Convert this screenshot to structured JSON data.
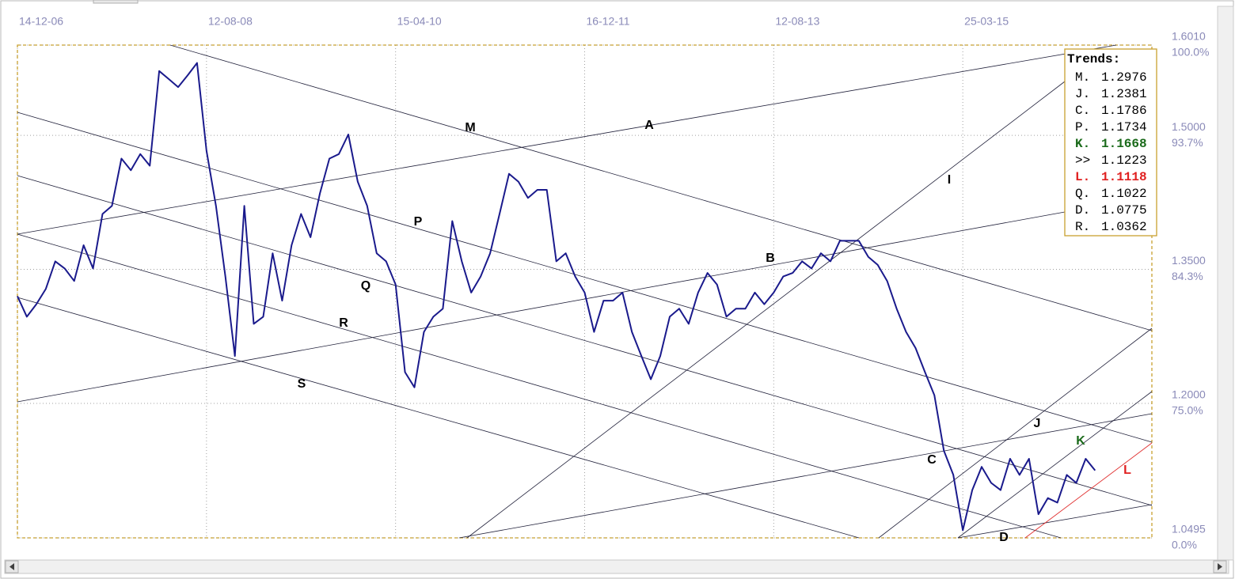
{
  "chart_data": {
    "type": "line",
    "xlim": [
      0,
      120
    ],
    "xticks": [
      {
        "value": 0,
        "label": "14-12-06"
      },
      {
        "value": 20,
        "label": "12-08-08"
      },
      {
        "value": 40,
        "label": "15-04-10"
      },
      {
        "value": 60,
        "label": "16-12-11"
      },
      {
        "value": 80,
        "label": "12-08-13"
      },
      {
        "value": 100,
        "label": "25-03-15"
      }
    ],
    "ylim": [
      1.0495,
      1.601
    ],
    "yticks": [
      {
        "value": 1.601,
        "label": "1.6010"
      },
      {
        "value": 1.5,
        "label": "1.5000"
      },
      {
        "value": 1.35,
        "label": "1.3500"
      },
      {
        "value": 1.2,
        "label": "1.2000"
      },
      {
        "value": 1.0495,
        "label": "1.0495"
      }
    ],
    "ytick_percent_labels": [
      "100.0%",
      "93.7%",
      "84.3%",
      "75.0%",
      "0.0%"
    ],
    "grid": true,
    "series": [
      {
        "color": "#1a1a8c",
        "values": [
          1.32,
          1.297,
          1.311,
          1.328,
          1.359,
          1.351,
          1.337,
          1.377,
          1.351,
          1.412,
          1.421,
          1.474,
          1.461,
          1.479,
          1.466,
          1.572,
          1.563,
          1.554,
          1.567,
          1.581,
          1.483,
          1.421,
          1.342,
          1.253,
          1.421,
          1.289,
          1.297,
          1.368,
          1.315,
          1.377,
          1.412,
          1.386,
          1.435,
          1.474,
          1.479,
          1.501,
          1.448,
          1.421,
          1.368,
          1.359,
          1.333,
          1.235,
          1.218,
          1.28,
          1.297,
          1.306,
          1.404,
          1.359,
          1.324,
          1.342,
          1.368,
          1.412,
          1.457,
          1.448,
          1.43,
          1.439,
          1.439,
          1.359,
          1.368,
          1.342,
          1.324,
          1.28,
          1.315,
          1.315,
          1.324,
          1.28,
          1.253,
          1.227,
          1.253,
          1.297,
          1.306,
          1.289,
          1.324,
          1.346,
          1.333,
          1.297,
          1.306,
          1.306,
          1.324,
          1.311,
          1.324,
          1.342,
          1.346,
          1.359,
          1.351,
          1.368,
          1.359,
          1.382,
          1.382,
          1.382,
          1.364,
          1.355,
          1.337,
          1.306,
          1.28,
          1.262,
          1.235,
          1.209,
          1.147,
          1.12,
          1.058,
          1.103,
          1.129,
          1.111,
          1.103,
          1.138,
          1.12,
          1.138,
          1.076,
          1.094,
          1.089,
          1.12,
          1.111,
          1.138,
          1.125
        ]
      }
    ],
    "trend_labels": [
      {
        "text": "A",
        "color": "#000000"
      },
      {
        "text": "M",
        "color": "#000000"
      },
      {
        "text": "P",
        "color": "#000000"
      },
      {
        "text": "Q",
        "color": "#000000"
      },
      {
        "text": "R",
        "color": "#000000"
      },
      {
        "text": "S",
        "color": "#000000"
      },
      {
        "text": "B",
        "color": "#000000"
      },
      {
        "text": "I",
        "color": "#000000"
      },
      {
        "text": "J",
        "color": "#000000"
      },
      {
        "text": "C",
        "color": "#000000"
      },
      {
        "text": "K",
        "color": "#1a6a1a"
      },
      {
        "text": "L",
        "color": "#e02020"
      },
      {
        "text": "D",
        "color": "#000000"
      }
    ],
    "trends_box": {
      "title": "Trends:",
      "entries": [
        {
          "name": "M.",
          "value": 1.2976,
          "color": "#000000"
        },
        {
          "name": "J.",
          "value": 1.2381,
          "color": "#000000"
        },
        {
          "name": "C.",
          "value": 1.1786,
          "color": "#000000"
        },
        {
          "name": "P.",
          "value": 1.1734,
          "color": "#000000"
        },
        {
          "name": "K.",
          "value": 1.1668,
          "color": "#1a6a1a"
        },
        {
          "name": ">>",
          "value": 1.1223,
          "color": "#000000"
        },
        {
          "name": "L.",
          "value": 1.1118,
          "color": "#e02020"
        },
        {
          "name": "Q.",
          "value": 1.1022,
          "color": "#000000"
        },
        {
          "name": "D.",
          "value": 1.0775,
          "color": "#000000"
        },
        {
          "name": "R.",
          "value": 1.0362,
          "color": "#000000"
        }
      ]
    }
  }
}
